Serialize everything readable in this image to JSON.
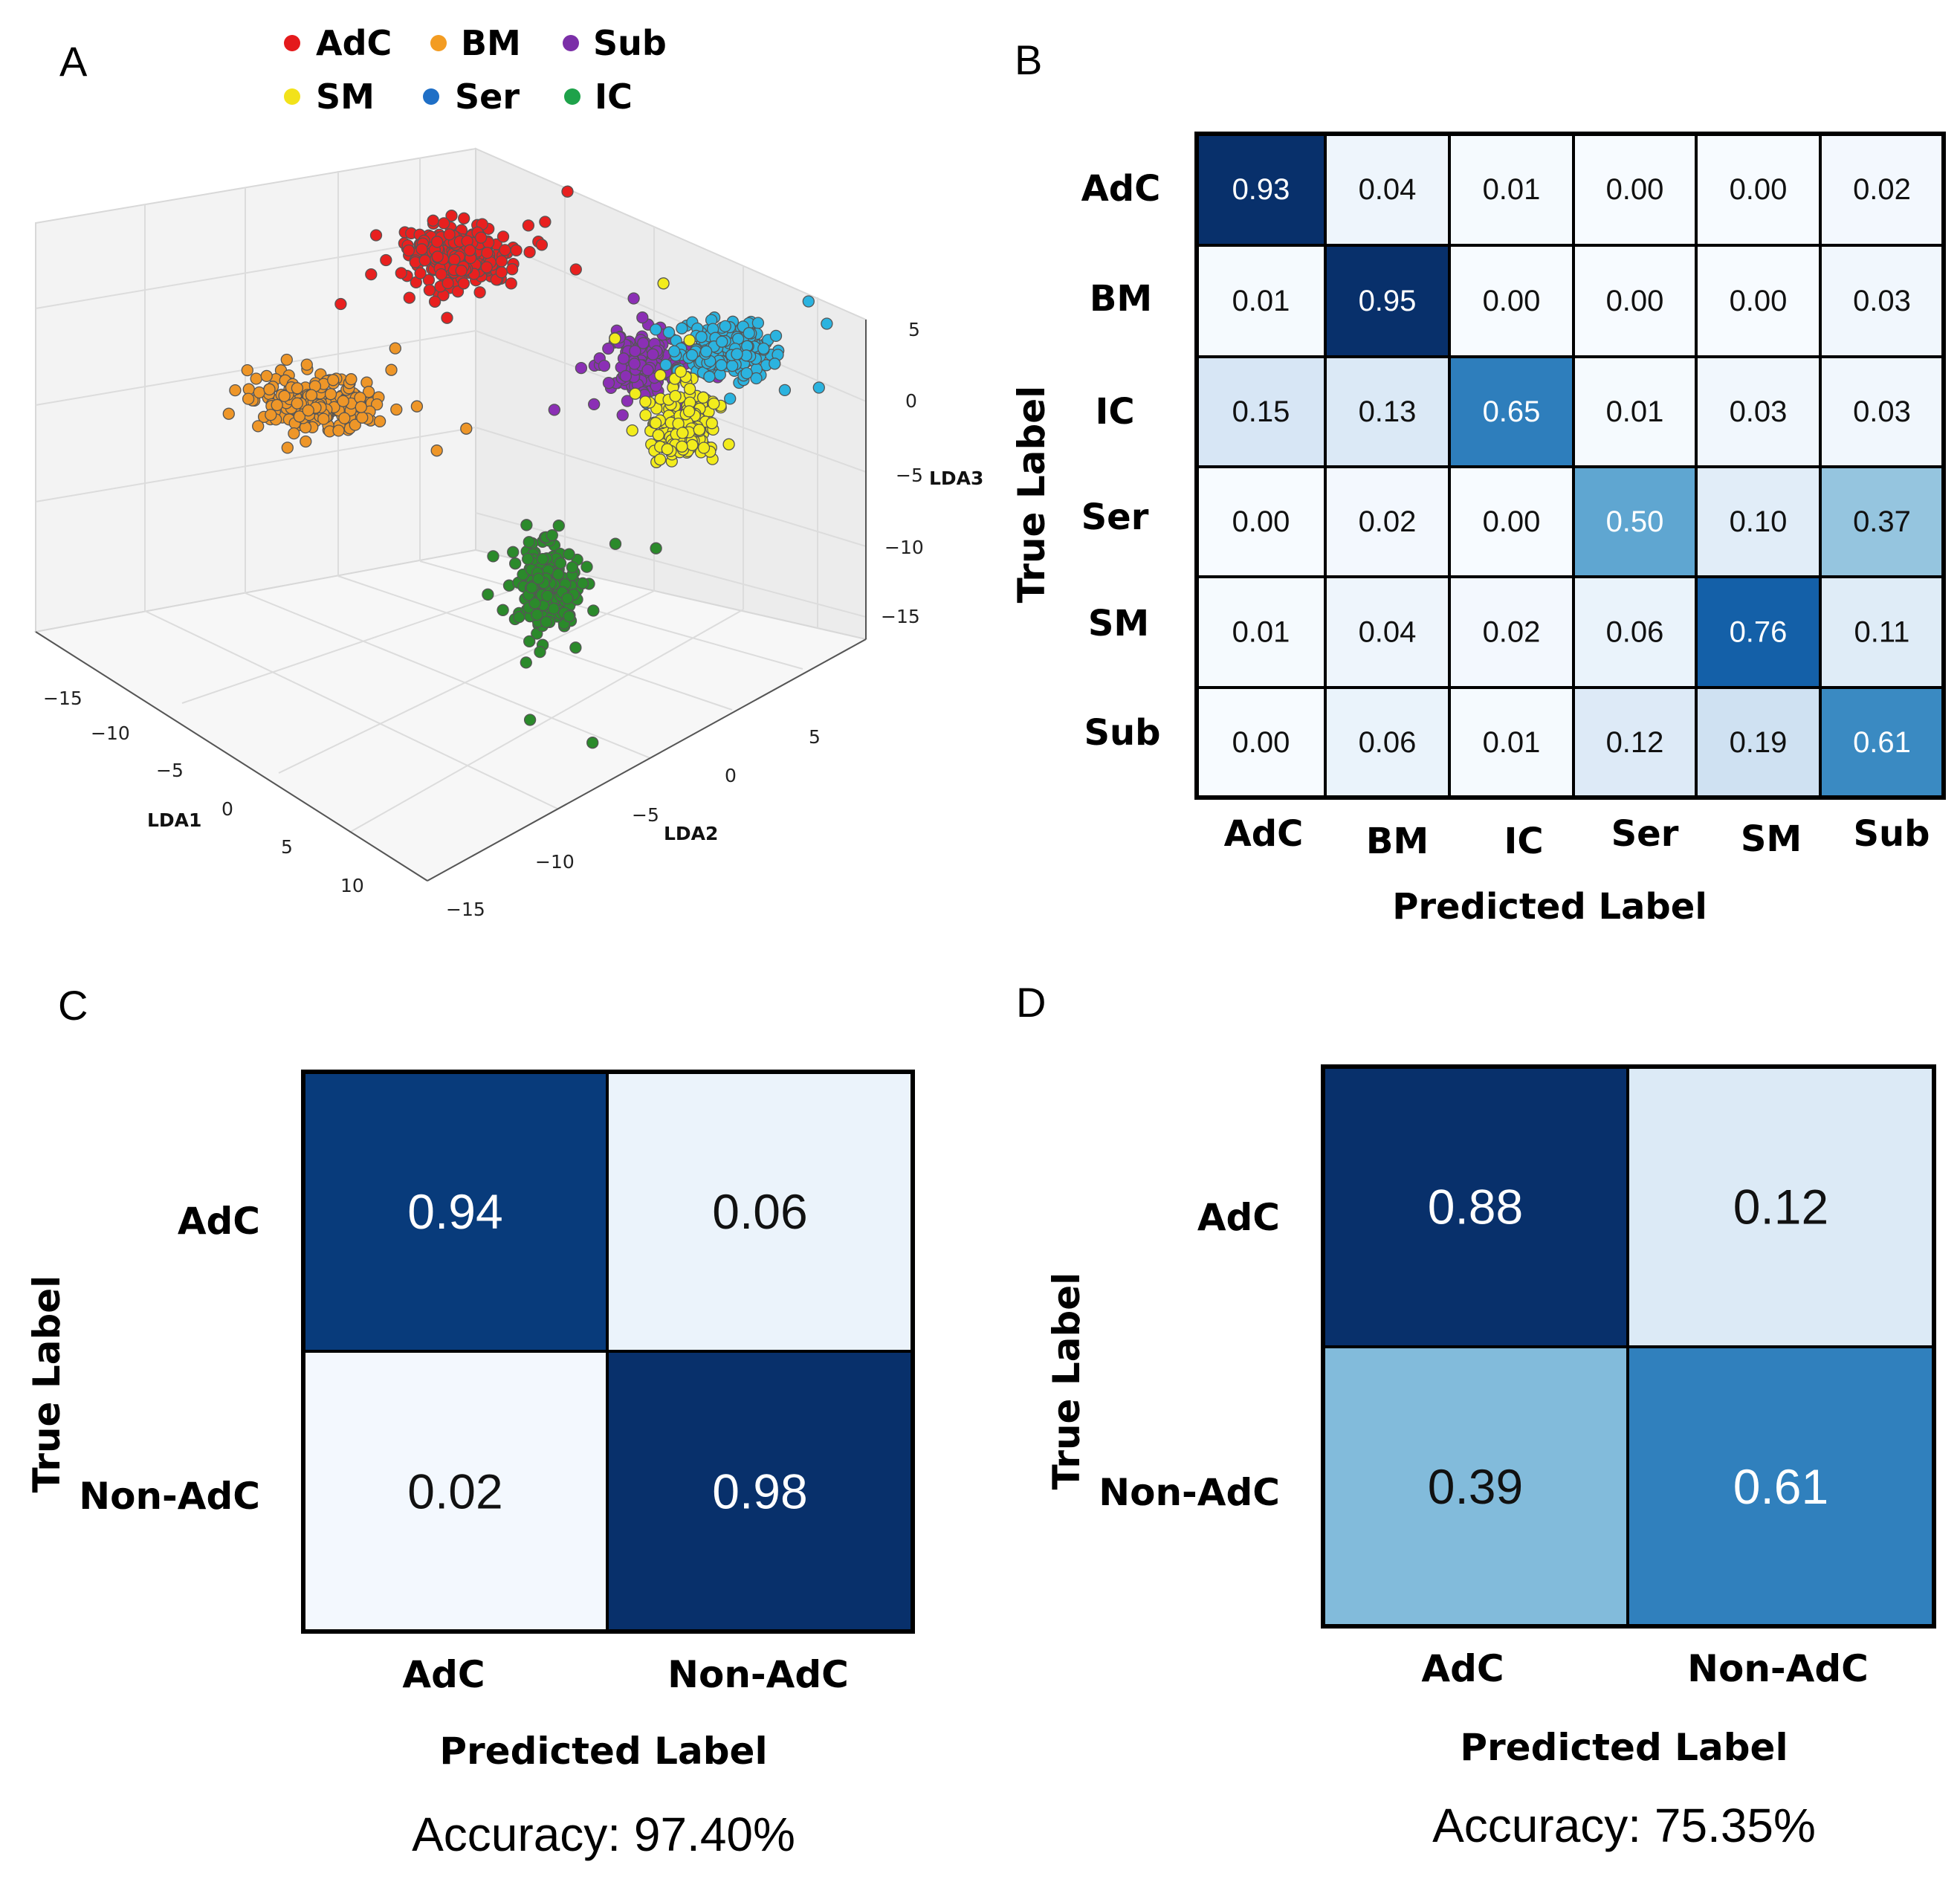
{
  "panels": {
    "A": "A",
    "B": "B",
    "C": "C",
    "D": "D"
  },
  "legend": [
    {
      "label": "AdC",
      "color": "#e41a1c"
    },
    {
      "label": "BM",
      "color": "#f39c22"
    },
    {
      "label": "Sub",
      "color": "#7b2fa8"
    },
    {
      "label": "SM",
      "color": "#f2e21a"
    },
    {
      "label": "Ser",
      "color": "#1f6fc6"
    },
    {
      "label": "IC",
      "color": "#1ea24a"
    }
  ],
  "scatter3d": {
    "axes": {
      "x_label": "LDA1",
      "y_label": "LDA2",
      "z_label": "LDA3",
      "x_ticks": [
        "−15",
        "−10",
        "−5",
        "0",
        "5",
        "10"
      ],
      "y_ticks": [
        "−15",
        "−10",
        "−5",
        "0",
        "5"
      ],
      "z_ticks": [
        "5",
        "0",
        "−5",
        "−10",
        "−15"
      ]
    },
    "clusters": [
      {
        "name": "AdC",
        "color": "#e8201f"
      },
      {
        "name": "BM",
        "color": "#ee9628"
      },
      {
        "name": "Sub",
        "color": "#8b2fb5"
      },
      {
        "name": "Ser",
        "color": "#2bb3df"
      },
      {
        "name": "SM",
        "color": "#f2ec1c"
      },
      {
        "name": "IC",
        "color": "#2b8a2b"
      }
    ]
  },
  "chart_data": [
    {
      "type": "heatmap",
      "panel": "B",
      "row_labels": [
        "AdC",
        "BM",
        "IC",
        "Ser",
        "SM",
        "Sub"
      ],
      "col_labels": [
        "AdC",
        "BM",
        "IC",
        "Ser",
        "SM",
        "Sub"
      ],
      "values": [
        [
          "0.93",
          "0.04",
          "0.01",
          "0.00",
          "0.00",
          "0.02"
        ],
        [
          "0.01",
          "0.95",
          "0.00",
          "0.00",
          "0.00",
          "0.03"
        ],
        [
          "0.15",
          "0.13",
          "0.65",
          "0.01",
          "0.03",
          "0.03"
        ],
        [
          "0.00",
          "0.02",
          "0.00",
          "0.50",
          "0.10",
          "0.37"
        ],
        [
          "0.01",
          "0.04",
          "0.02",
          "0.06",
          "0.76",
          "0.11"
        ],
        [
          "0.00",
          "0.06",
          "0.01",
          "0.12",
          "0.19",
          "0.61"
        ]
      ],
      "xlabel": "Predicted Label",
      "ylabel": "True Label"
    },
    {
      "type": "heatmap",
      "panel": "C",
      "row_labels": [
        "AdC",
        "Non-AdC"
      ],
      "col_labels": [
        "AdC",
        "Non-AdC"
      ],
      "values": [
        [
          "0.94",
          "0.06"
        ],
        [
          "0.02",
          "0.98"
        ]
      ],
      "xlabel": "Predicted Label",
      "ylabel": "True Label",
      "accuracy": "Accuracy: 97.40%"
    },
    {
      "type": "heatmap",
      "panel": "D",
      "row_labels": [
        "AdC",
        "Non-AdC"
      ],
      "col_labels": [
        "AdC",
        "Non-AdC"
      ],
      "values": [
        [
          "0.88",
          "0.12"
        ],
        [
          "0.39",
          "0.61"
        ]
      ],
      "xlabel": "Predicted Label",
      "ylabel": "True Label",
      "accuracy": "Accuracy: 75.35%"
    }
  ]
}
